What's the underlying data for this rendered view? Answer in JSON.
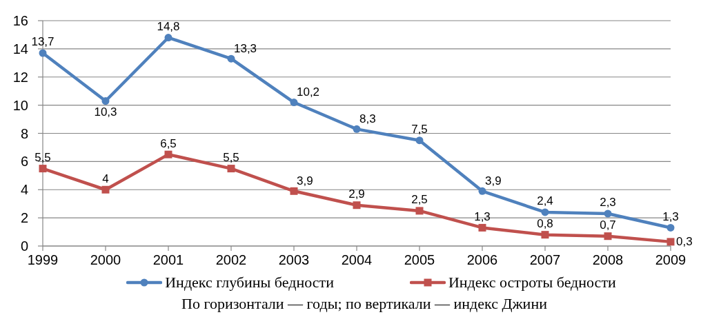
{
  "chart_data": {
    "type": "line",
    "categories": [
      "1999",
      "2000",
      "2001",
      "2002",
      "2003",
      "2004",
      "2005",
      "2006",
      "2007",
      "2008",
      "2009"
    ],
    "ylim": [
      0,
      16
    ],
    "yticks": [
      0,
      2,
      4,
      6,
      8,
      10,
      12,
      14,
      16
    ],
    "grid": "y",
    "legend": "bottom",
    "line_style": "solid",
    "series": [
      {
        "name": "Индекс глубины бедности",
        "color": "#4f81bd",
        "marker": "circle",
        "values": [
          13.7,
          10.3,
          14.8,
          13.3,
          10.2,
          8.3,
          7.5,
          3.9,
          2.4,
          2.3,
          1.3
        ],
        "value_labels": [
          "13,7",
          "10,3",
          "14,8",
          "13,3",
          "10,2",
          "8,3",
          "7,5",
          "3,9",
          "2,4",
          "2,3",
          "1,3"
        ]
      },
      {
        "name": "Индекс остроты бедности",
        "color": "#c0504d",
        "marker": "square",
        "values": [
          5.5,
          4,
          6.5,
          5.5,
          3.9,
          2.9,
          2.5,
          1.3,
          0.8,
          0.7,
          0.3
        ],
        "value_labels": [
          "5,5",
          "4",
          "6,5",
          "5,5",
          "3,9",
          "2,9",
          "2,5",
          "1,3",
          "0,8",
          "0,7",
          "0,3"
        ]
      }
    ],
    "annotations": [
      "По горизонтали — годы; по вертикали — индекс Джини"
    ]
  }
}
